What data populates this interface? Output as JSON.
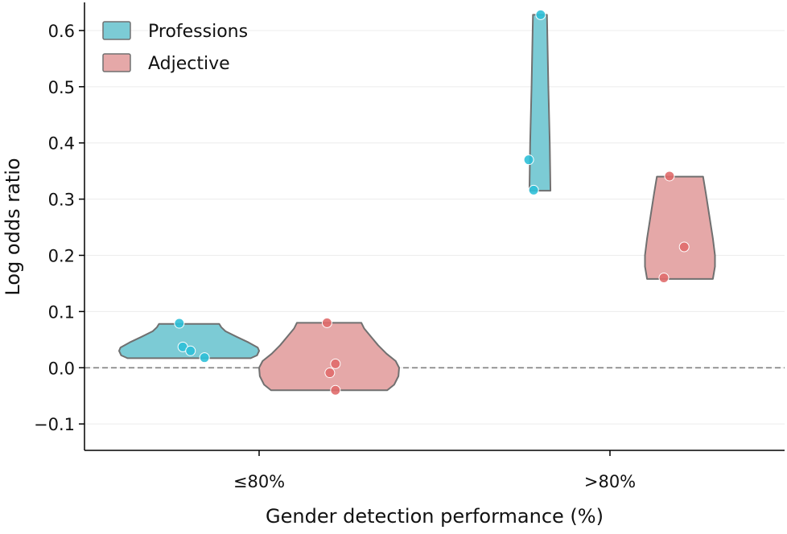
{
  "chart_data": {
    "type": "violin",
    "xlabel": "Gender detection performance (%)",
    "ylabel": "Log odds ratio",
    "categories": [
      "≤80%",
      ">80%"
    ],
    "ylim": [
      -0.147,
      0.65
    ],
    "yticks": [
      -0.1,
      0.0,
      0.1,
      0.2,
      0.3,
      0.4,
      0.5,
      0.6
    ],
    "ytick_labels": [
      "−0.1",
      "0.0",
      "0.1",
      "0.2",
      "0.3",
      "0.4",
      "0.5",
      "0.6"
    ],
    "grid": "horizontal",
    "reference_line": 0.0,
    "legend": {
      "placement": "top-left",
      "entries": [
        "Professions",
        "Adjective"
      ]
    },
    "series": [
      {
        "name": "Professions",
        "fill": "#7ccbd5",
        "point_color": "#2fc0d8",
        "groups": [
          {
            "category": "≤80%",
            "points": [
              0.079,
              0.037,
              0.03,
              0.018
            ],
            "jitter": [
              -0.14,
              -0.09,
              0.02,
              0.22
            ],
            "density": [
              [
                0.017,
                0.88
              ],
              [
                0.022,
                0.97
              ],
              [
                0.03,
                1.0
              ],
              [
                0.036,
                0.98
              ],
              [
                0.045,
                0.85
              ],
              [
                0.055,
                0.68
              ],
              [
                0.065,
                0.52
              ],
              [
                0.072,
                0.46
              ],
              [
                0.078,
                0.43
              ]
            ]
          },
          {
            "category": ">80%",
            "points": [
              0.628,
              0.37,
              0.316
            ],
            "jitter": [
              0.01,
              -0.16,
              -0.09
            ],
            "density": [
              [
                0.315,
                0.15
              ],
              [
                0.4,
                0.14
              ],
              [
                0.5,
                0.12
              ],
              [
                0.628,
                0.1
              ]
            ]
          }
        ]
      },
      {
        "name": "Adjective",
        "fill": "#e5a8a8",
        "point_color": "#e06b6b",
        "groups": [
          {
            "category": "≤80%",
            "points": [
              0.08,
              0.007,
              -0.009,
              -0.04
            ],
            "jitter": [
              -0.03,
              0.09,
              0.01,
              0.09
            ],
            "density": [
              [
                -0.04,
                0.83
              ],
              [
                -0.03,
                0.93
              ],
              [
                -0.015,
                0.99
              ],
              [
                0.0,
                1.0
              ],
              [
                0.012,
                0.95
              ],
              [
                0.025,
                0.82
              ],
              [
                0.04,
                0.7
              ],
              [
                0.055,
                0.6
              ],
              [
                0.07,
                0.5
              ],
              [
                0.08,
                0.46
              ]
            ]
          },
          {
            "category": ">80%",
            "points": [
              0.341,
              0.215,
              0.16
            ],
            "jitter": [
              -0.15,
              0.06,
              -0.23
            ],
            "density": [
              [
                0.158,
                0.47
              ],
              [
                0.18,
                0.5
              ],
              [
                0.2,
                0.5
              ],
              [
                0.23,
                0.47
              ],
              [
                0.27,
                0.42
              ],
              [
                0.31,
                0.37
              ],
              [
                0.34,
                0.33
              ]
            ]
          }
        ]
      }
    ]
  }
}
